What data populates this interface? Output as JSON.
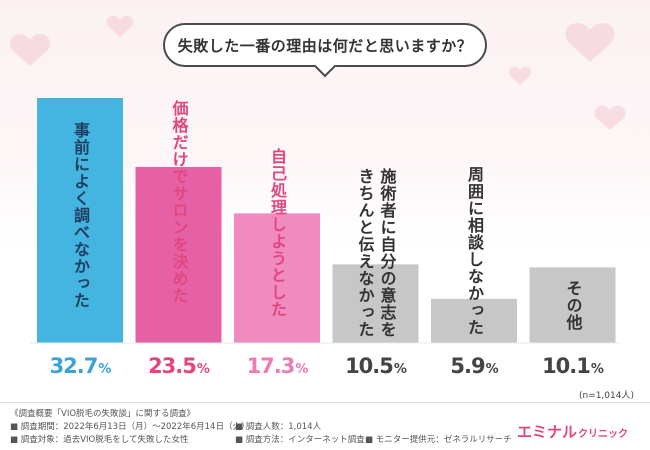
{
  "colors": {
    "bar1": "#44b4e1",
    "bar2": "#e660a5",
    "bar3": "#f08bbf",
    "bar_gray": "#c7c7c7",
    "label_blue": "#3aa3d6",
    "label_pink": "#e2467f",
    "label_pink_light": "#ee7bb4",
    "label_gray": "#444444",
    "text_inside_dark": "#1f3f5f",
    "text_inside_white": "#ffffff"
  },
  "question": "失敗した一番の理由は何だと思いますか？",
  "chart_data": {
    "type": "bar",
    "categories": [
      "事前によく調べなかった",
      "価格だけでサロンを決めた",
      "自己処理しようとした",
      "施術者に自分の意志を\nきちんと伝えなかった",
      "周囲に相談しなかった",
      "その他"
    ],
    "values": [
      32.7,
      23.5,
      17.3,
      10.5,
      5.9,
      10.1
    ],
    "value_labels": [
      "32.7",
      "23.5",
      "17.3",
      "10.5",
      "5.9",
      "10.1"
    ],
    "unit": "%",
    "ylim": [
      0,
      32.7
    ],
    "note": "(n=1,014人)"
  },
  "footer": {
    "title": "《調査概要「VIO脱毛の失敗談」に関する調査》",
    "period": "■ 調査期間：2022年6月13日（月）〜2022年6月14日（火）",
    "target": "■ 調査対象：過去VIO脱毛をして失敗した女性",
    "count": "■ 調査人数：1,014人",
    "method": "■ 調査方法：インターネット調査",
    "provider": "■ モニター提供元：ゼネラルリサーチ"
  },
  "logo": {
    "main": "エミナル",
    "sub": "クリニック"
  }
}
